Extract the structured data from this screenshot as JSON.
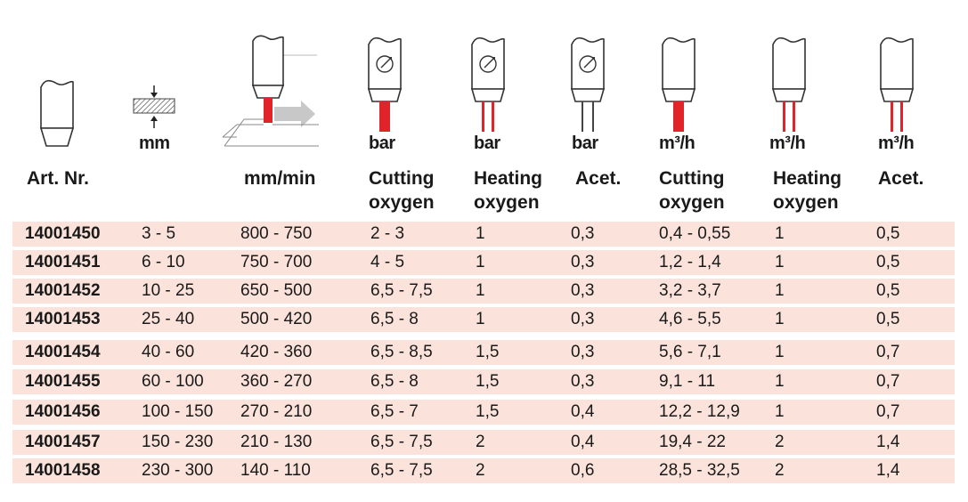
{
  "units": {
    "thickness": "mm",
    "pressure_cutting": "bar",
    "pressure_heating": "bar",
    "pressure_acet": "bar",
    "flow_cutting": "m³/h",
    "flow_heating": "m³/h",
    "flow_acet": "m³/h"
  },
  "headers": {
    "art": "Art. Nr.",
    "speed": "mm/min",
    "cutting_oxygen_1": "Cutting",
    "cutting_oxygen_2": "oxygen",
    "heating_oxygen_1": "Heating",
    "heating_oxygen_2": "oxygen",
    "acet": "Acet.",
    "cutting_oxygen_flow_1": "Cutting",
    "cutting_oxygen_flow_2": "oxygen",
    "heating_oxygen_flow_1": "Heating",
    "heating_oxygen_flow_2": "oxygen",
    "acet_flow": "Acet."
  },
  "rows": [
    [
      "14001450",
      "3 - 5",
      "800 - 750",
      "2 - 3",
      "1",
      "0,3",
      "0,4 - 0,55",
      "1",
      "0,5"
    ],
    [
      "14001451",
      "6 - 10",
      "750 - 700",
      "4 - 5",
      "1",
      "0,3",
      "1,2 - 1,4",
      "1",
      "0,5"
    ],
    [
      "14001452",
      "10 - 25",
      "650 - 500",
      "6,5 - 7,5",
      "1",
      "0,3",
      "3,2 - 3,7",
      "1",
      "0,5"
    ],
    [
      "14001453",
      "25 - 40",
      "500 - 420",
      "6,5 - 8",
      "1",
      "0,3",
      "4,6 - 5,5",
      "1",
      "0,5"
    ],
    [
      "14001454",
      "40 - 60",
      "420 - 360",
      "6,5 - 8,5",
      "1,5",
      "0,3",
      "5,6 - 7,1",
      "1",
      "0,7"
    ],
    [
      "14001455",
      "60 - 100",
      "360 - 270",
      "6,5 - 8",
      "1,5",
      "0,3",
      "9,1 - 11",
      "1",
      "0,7"
    ],
    [
      "14001456",
      "100 - 150",
      "270 - 210",
      "6,5 - 7",
      "1,5",
      "0,4",
      "12,2 - 12,9",
      "1",
      "0,7"
    ],
    [
      "14001457",
      "150 - 230",
      "210 - 130",
      "6,5 - 7,5",
      "2",
      "0,4",
      "19,4 - 22",
      "2",
      "1,4"
    ],
    [
      "14001458",
      "230 - 300",
      "140 - 110",
      "6,5 - 7,5",
      "2",
      "0,6",
      "28,5 - 32,5",
      "2",
      "1,4"
    ]
  ],
  "colors": {
    "row_background": "#fbe3dc",
    "accent_red": "#e0242a",
    "arrow_grey": "#c8c8c8"
  }
}
